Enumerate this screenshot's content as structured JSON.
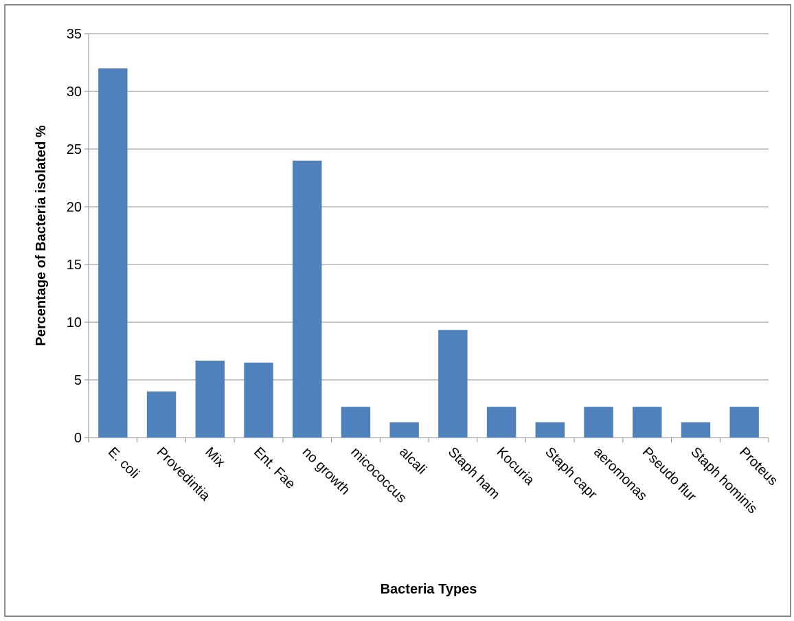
{
  "chart_data": {
    "type": "bar",
    "title": "",
    "xlabel": "Bacteria Types",
    "ylabel": "Percentage of Bacteria isolated %",
    "categories": [
      "E. coli",
      "Provedintia",
      "Mix",
      "Ent. Fae",
      "no growth",
      "micococcus",
      "alcali",
      "Staph ham",
      "Kocuria",
      "Staph capr",
      "aeromonas",
      "Pseudo flur",
      "Staph hominis",
      "Proteus"
    ],
    "values": [
      32,
      4,
      6.67,
      6.5,
      24,
      2.67,
      1.33,
      9.33,
      2.67,
      1.33,
      2.67,
      2.67,
      1.33,
      2.67
    ],
    "ylim": [
      0,
      35
    ],
    "yticks": [
      0,
      5,
      10,
      15,
      20,
      25,
      30,
      35
    ],
    "grid": true,
    "legend": "none",
    "bar_color": "#4f81bd",
    "grid_color": "#8c8c8c"
  }
}
